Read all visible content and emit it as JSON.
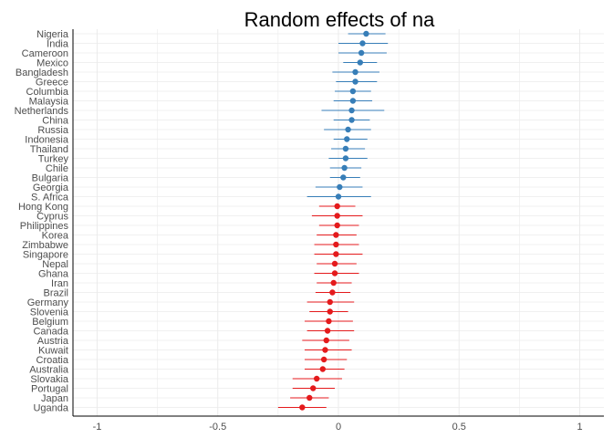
{
  "chart_data": {
    "type": "scatter",
    "title": "Random effects of na",
    "xlabel": "",
    "ylabel": "",
    "xlim": [
      -1.1,
      1.1
    ],
    "x_ticks": [
      -1,
      -0.5,
      0,
      0.5,
      1
    ],
    "x_tick_labels": [
      "-1",
      "-0.5",
      "0",
      "0.5",
      "1"
    ],
    "grid": true,
    "legend": "none",
    "colors": {
      "positive": "#377eb8",
      "negative": "#e41a1c",
      "grid": "#ebebeb",
      "axis": "#000000"
    },
    "categories": [
      "Nigeria",
      "India",
      "Cameroon",
      "Mexico",
      "Bangladesh",
      "Greece",
      "Columbia",
      "Malaysia",
      "Netherlands",
      "China",
      "Russia",
      "Indonesia",
      "Thailand",
      "Turkey",
      "Chile",
      "Bulgaria",
      "Georgia",
      "S. Africa",
      "Hong Kong",
      "Cyprus",
      "Philippines",
      "Korea",
      "Zimbabwe",
      "Singapore",
      "Nepal",
      "Ghana",
      "Iran",
      "Brazil",
      "Germany",
      "Slovenia",
      "Belgium",
      "Canada",
      "Austria",
      "Kuwait",
      "Croatia",
      "Australia",
      "Slovakia",
      "Portugal",
      "Japan",
      "Uganda"
    ],
    "estimates": [
      0.115,
      0.1,
      0.095,
      0.09,
      0.07,
      0.07,
      0.06,
      0.06,
      0.055,
      0.055,
      0.04,
      0.035,
      0.03,
      0.03,
      0.025,
      0.02,
      0.005,
      0.0,
      -0.005,
      -0.005,
      -0.005,
      -0.01,
      -0.01,
      -0.01,
      -0.015,
      -0.015,
      -0.02,
      -0.025,
      -0.035,
      -0.035,
      -0.04,
      -0.045,
      -0.05,
      -0.055,
      -0.06,
      -0.065,
      -0.09,
      -0.105,
      -0.12,
      -0.15
    ],
    "lower": [
      0.04,
      0.0,
      0.0,
      0.02,
      -0.025,
      -0.01,
      -0.015,
      -0.02,
      -0.07,
      -0.02,
      -0.06,
      -0.02,
      -0.03,
      -0.04,
      -0.035,
      -0.035,
      -0.095,
      -0.13,
      -0.08,
      -0.11,
      -0.08,
      -0.09,
      -0.1,
      -0.1,
      -0.09,
      -0.1,
      -0.09,
      -0.095,
      -0.13,
      -0.12,
      -0.14,
      -0.13,
      -0.15,
      -0.14,
      -0.14,
      -0.14,
      -0.19,
      -0.19,
      -0.2,
      -0.25
    ],
    "upper": [
      0.195,
      0.205,
      0.2,
      0.16,
      0.17,
      0.16,
      0.135,
      0.14,
      0.19,
      0.13,
      0.135,
      0.12,
      0.11,
      0.12,
      0.095,
      0.09,
      0.1,
      0.135,
      0.07,
      0.1,
      0.085,
      0.075,
      0.085,
      0.1,
      0.075,
      0.085,
      0.055,
      0.05,
      0.065,
      0.04,
      0.06,
      0.065,
      0.045,
      0.055,
      0.035,
      0.025,
      0.015,
      -0.015,
      -0.04,
      -0.05
    ]
  }
}
